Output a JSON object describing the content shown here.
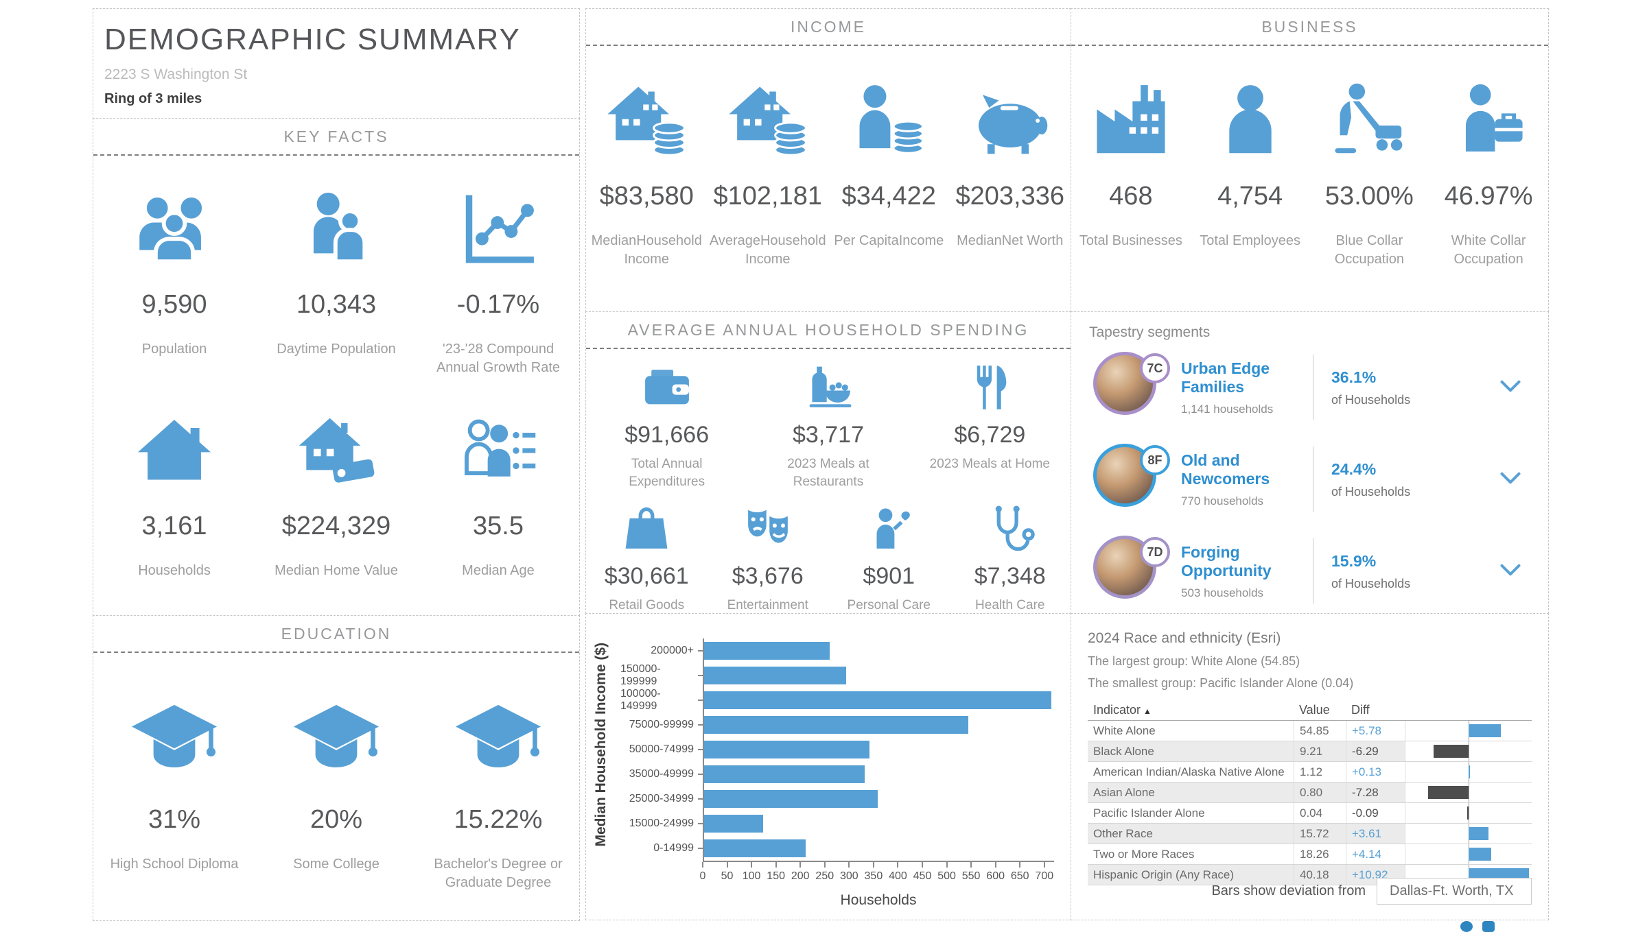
{
  "report": {
    "title": "DEMOGRAPHIC SUMMARY",
    "address": "2223 S Washington St",
    "buffer": "Ring of 3 miles"
  },
  "sections": {
    "key_facts": {
      "title": "KEY FACTS",
      "items": [
        {
          "icon": "population-icon",
          "value": "9,590",
          "label": "Population"
        },
        {
          "icon": "daytime-population-icon",
          "value": "10,343",
          "label": "Daytime Population"
        },
        {
          "icon": "growth-chart-icon",
          "value": "-0.17%",
          "label": "'23-'28 Compound Annual Growth Rate"
        },
        {
          "icon": "house-icon",
          "value": "3,161",
          "label": "Households"
        },
        {
          "icon": "home-value-icon",
          "value": "$224,329",
          "label": "Median Home Value"
        },
        {
          "icon": "median-age-icon",
          "value": "35.5",
          "label": "Median Age"
        }
      ]
    },
    "education": {
      "title": "EDUCATION",
      "items": [
        {
          "icon": "graduation-cap-icon",
          "value": "31%",
          "label": "High School Diploma"
        },
        {
          "icon": "graduation-cap-icon",
          "value": "20%",
          "label": "Some College"
        },
        {
          "icon": "graduation-cap-icon",
          "value": "15.22%",
          "label": "Bachelor's Degree or Graduate Degree"
        }
      ]
    },
    "income": {
      "title": "INCOME",
      "items": [
        {
          "icon": "house-coins-icon",
          "value": "$83,580",
          "label": "MedianHousehold Income"
        },
        {
          "icon": "house-coins-icon",
          "value": "$102,181",
          "label": "AverageHousehold Income"
        },
        {
          "icon": "person-coins-icon",
          "value": "$34,422",
          "label": "Per CapitaIncome"
        },
        {
          "icon": "piggy-bank-icon",
          "value": "$203,336",
          "label": "MedianNet Worth"
        }
      ]
    },
    "spending": {
      "title": "AVERAGE ANNUAL HOUSEHOLD SPENDING",
      "items": [
        {
          "icon": "wallet-icon",
          "value": "$91,666",
          "label": "Total Annual Expenditures"
        },
        {
          "icon": "restaurant-meal-icon",
          "value": "$3,717",
          "label": "2023 Meals at Restaurants"
        },
        {
          "icon": "fork-knife-icon",
          "value": "$6,729",
          "label": "2023 Meals at Home"
        },
        {
          "icon": "shopping-bag-icon",
          "value": "$30,661",
          "label": "Retail Goods"
        },
        {
          "icon": "theater-masks-icon",
          "value": "$3,676",
          "label": "Entertainment"
        },
        {
          "icon": "personal-care-icon",
          "value": "$901",
          "label": "Personal Care"
        },
        {
          "icon": "stethoscope-icon",
          "value": "$7,348",
          "label": "Health Care"
        }
      ]
    },
    "business": {
      "title": "BUSINESS",
      "items": [
        {
          "icon": "factory-icon",
          "value": "468",
          "label": "Total Businesses"
        },
        {
          "icon": "person-icon",
          "value": "4,754",
          "label": "Total Employees"
        },
        {
          "icon": "blue-collar-icon",
          "value": "53.00%",
          "label": "Blue Collar Occupation"
        },
        {
          "icon": "white-collar-icon",
          "value": "46.97%",
          "label": "White Collar Occupation"
        }
      ]
    },
    "tapestry": {
      "title": "Tapestry segments",
      "pct_label": "of Households",
      "segments": [
        {
          "code": "7C",
          "name": "Urban Edge Families",
          "households": "1,141 households",
          "pct": "36.1%",
          "ring_color": "#a98fc9"
        },
        {
          "code": "8F",
          "name": "Old and Newcomers",
          "households": "770 households",
          "pct": "24.4%",
          "ring_color": "#3aa0dc"
        },
        {
          "code": "7D",
          "name": "Forging Opportunity",
          "households": "503 households",
          "pct": "15.9%",
          "ring_color": "#a393c6"
        }
      ]
    },
    "race": {
      "title": "2024 Race and ethnicity (Esri)",
      "largest": "The largest group: White Alone (54.85)",
      "smallest": "The smallest group: Pacific Islander Alone (0.04)",
      "columns": [
        "Indicator",
        "Value",
        "Diff"
      ],
      "sort_indicator": "▲",
      "rows": [
        {
          "indicator": "White Alone",
          "value": "54.85",
          "diff": "+5.78",
          "diff_value": 5.78
        },
        {
          "indicator": "Black Alone",
          "value": "9.21",
          "diff": "-6.29",
          "diff_value": -6.29
        },
        {
          "indicator": "American Indian/Alaska Native Alone",
          "value": "1.12",
          "diff": "+0.13",
          "diff_value": 0.13
        },
        {
          "indicator": "Asian Alone",
          "value": "0.80",
          "diff": "-7.28",
          "diff_value": -7.28
        },
        {
          "indicator": "Pacific Islander Alone",
          "value": "0.04",
          "diff": "-0.09",
          "diff_value": -0.09
        },
        {
          "indicator": "Other Race",
          "value": "15.72",
          "diff": "+3.61",
          "diff_value": 3.61
        },
        {
          "indicator": "Two or More Races",
          "value": "18.26",
          "diff": "+4.14",
          "diff_value": 4.14
        },
        {
          "indicator": "Hispanic Origin (Any Race)",
          "value": "40.18",
          "diff": "+10.92",
          "diff_value": 10.92
        }
      ],
      "footer_label": "Bars show deviation from",
      "comparison_area": "Dallas-Ft. Worth, TX"
    }
  },
  "chart_data": {
    "type": "bar",
    "orientation": "horizontal",
    "categories": [
      "200000+",
      "150000-199999",
      "100000-149999",
      "75000-99999",
      "50000-74999",
      "35000-49999",
      "25000-34999",
      "15000-24999",
      "0-14999"
    ],
    "values": [
      258,
      292,
      715,
      543,
      340,
      330,
      357,
      122,
      209
    ],
    "xlabel": "Households",
    "ylabel": "Median Household Income ($)",
    "xlim": [
      0,
      720
    ],
    "xticks": [
      0,
      50,
      100,
      150,
      200,
      250,
      300,
      350,
      400,
      450,
      500,
      550,
      600,
      650,
      700
    ],
    "grid": false,
    "legend": "none"
  },
  "colors": {
    "accent_blue": "#57a0d5",
    "bar_negative": "#4d4d4d",
    "segment_link_blue": "#2f8fd0",
    "diff_positive": "#57a0d5",
    "diff_negative": "#4f4f4f"
  }
}
